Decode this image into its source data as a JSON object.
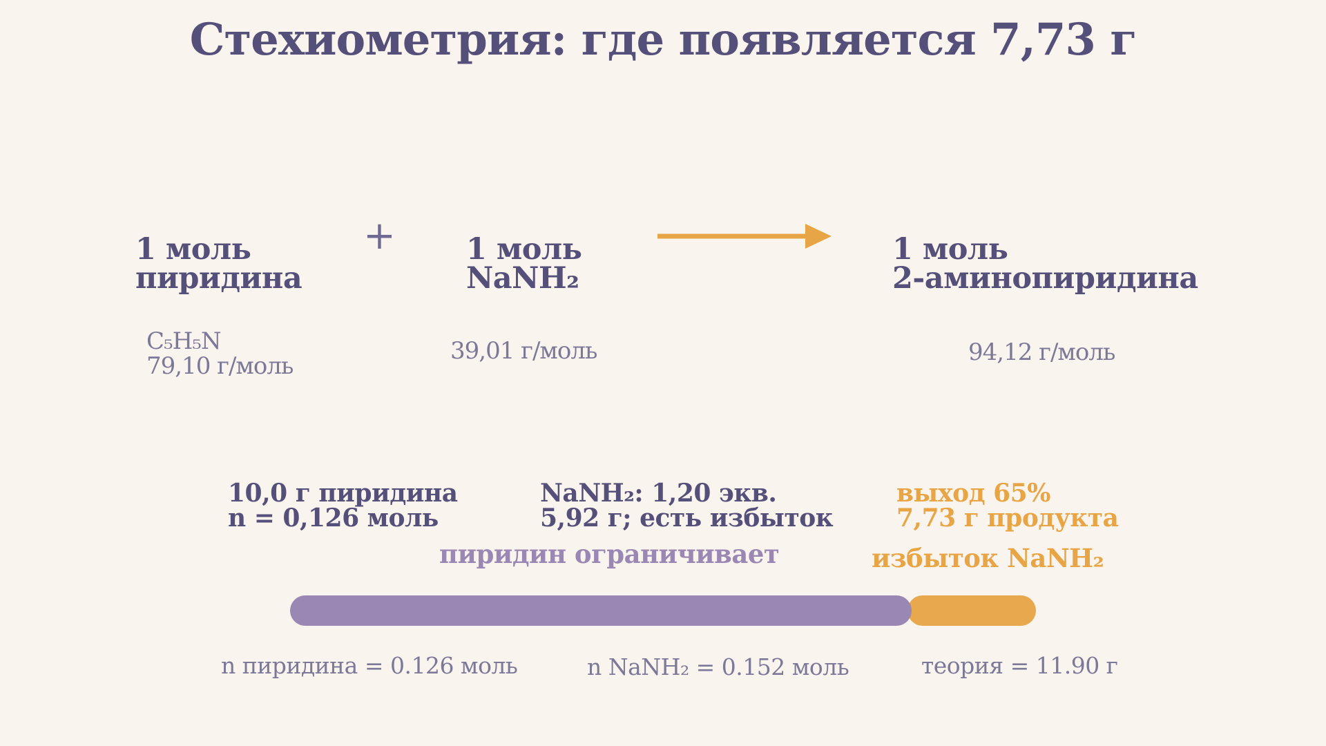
{
  "title": "Стехиометрия: где появляется 7,73 г",
  "reaction": {
    "plus": "+",
    "reactant1": {
      "line1": "1 моль",
      "line2": "пиридина",
      "formula": "C₅H₅N",
      "molar_mass": "79,10 г/моль"
    },
    "reactant2": {
      "line1": "1 моль",
      "line2": "NaNH₂",
      "molar_mass": "39,01 г/моль"
    },
    "product": {
      "line1": "1 моль",
      "line2": "2-аминопиридина",
      "molar_mass": "94,12 г/моль"
    }
  },
  "calculations": {
    "pyridine": {
      "line1": "10,0 г пиридина",
      "line2": "n = 0,126 моль"
    },
    "nanh2": {
      "line1": "NaNH₂: 1,20 экв.",
      "line2": "5,92 г; есть избыток"
    },
    "yield": {
      "line1": "выход 65%",
      "line2": "7,73 г продукта"
    }
  },
  "notes": {
    "limiting": "пиридин ограничивает",
    "excess": "избыток NaNH₂"
  },
  "bar": {
    "purple_fraction": 0.833,
    "orange_fraction": 0.167
  },
  "bottom": {
    "n_pyridine": "n пиридина = 0.126 моль",
    "n_nanh2": "n NaNH₂ = 0.152 моль",
    "theory": "теория = 11.90 г"
  },
  "colors": {
    "text": "#55507a",
    "purple": "#9a87b3",
    "orange": "#e8a545",
    "background": "#faf4ee"
  }
}
